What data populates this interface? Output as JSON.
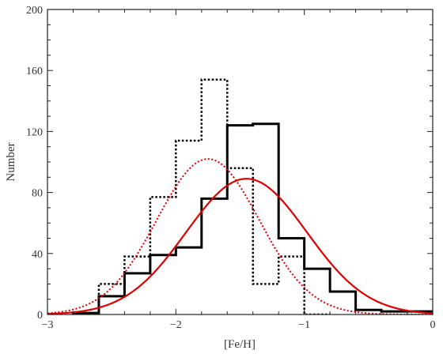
{
  "chart_data": {
    "type": "line",
    "xlabel": "[Fe/H]",
    "ylabel": "Number",
    "xlim": [
      -3,
      0
    ],
    "ylim": [
      0,
      200
    ],
    "xticks": [
      -3,
      -2,
      -1,
      0
    ],
    "xtick_labels": [
      "−3",
      "−2",
      "−1",
      "0"
    ],
    "yticks": [
      0,
      40,
      80,
      120,
      160,
      200
    ],
    "ytick_labels": [
      "0",
      "40",
      "80",
      "120",
      "160",
      "200"
    ],
    "grid": false,
    "series": [
      {
        "style": "solid-histogram",
        "color": "#000000",
        "bin_edges": [
          -2.8,
          -2.6,
          -2.4,
          -2.2,
          -2.0,
          -1.8,
          -1.6,
          -1.4,
          -1.2,
          -1.0,
          -0.8,
          -0.6,
          -0.4,
          -0.2,
          0.0
        ],
        "counts": [
          1,
          12,
          27,
          39,
          44,
          76,
          124,
          125,
          50,
          30,
          15,
          3,
          2,
          2
        ]
      },
      {
        "style": "dotted-histogram",
        "color": "#000000",
        "bin_edges": [
          -2.6,
          -2.4,
          -2.2,
          -2.0,
          -1.8,
          -1.6,
          -1.4,
          -1.2,
          -1.0,
          -0.8
        ],
        "counts": [
          20,
          38,
          77,
          114,
          154,
          96,
          20,
          38,
          0
        ]
      },
      {
        "style": "dotted-gaussian",
        "color": "#dd0000",
        "peak": 102,
        "mean": -1.75,
        "sigma": 0.4
      },
      {
        "style": "solid-gaussian",
        "color": "#dd0000",
        "peak": 89,
        "mean": -1.45,
        "sigma": 0.47
      }
    ]
  }
}
